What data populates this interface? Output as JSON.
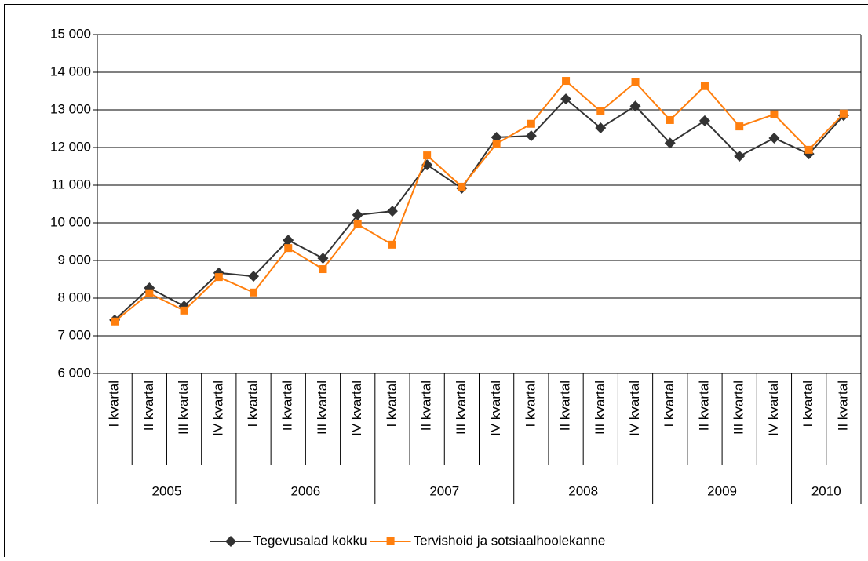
{
  "chart_data": {
    "type": "line",
    "categories": [
      "I kvartal",
      "II kvartal",
      "III kvartal",
      "IV kvartal",
      "I kvartal",
      "II kvartal",
      "III kvartal",
      "IV kvartal",
      "I kvartal",
      "II kvartal",
      "III kvartal",
      "IV kvartal",
      "I kvartal",
      "II kvartal",
      "III kvartal",
      "IV kvartal",
      "I kvartal",
      "II kvartal",
      "III kvartal",
      "IV kvartal",
      "I kvartal",
      "II kvartal"
    ],
    "years": [
      "2005",
      null,
      null,
      null,
      "2006",
      null,
      null,
      null,
      "2007",
      null,
      null,
      null,
      "2008",
      null,
      null,
      null,
      "2009",
      null,
      null,
      null,
      "2010",
      null
    ],
    "series": [
      {
        "name": "Tegevusalad kokku",
        "color": "#333333",
        "marker": "diamond",
        "values": [
          7420,
          8270,
          7790,
          8670,
          8580,
          9540,
          9060,
          10210,
          10310,
          11540,
          10920,
          12270,
          12310,
          13290,
          12520,
          13100,
          12120,
          12710,
          11770,
          12250,
          11830,
          12850
        ]
      },
      {
        "name": "Tervishoid ja sotsiaalhoolekanne",
        "color": "#ff7f0e",
        "marker": "square",
        "values": [
          7380,
          8130,
          7670,
          8560,
          8150,
          9330,
          8770,
          9960,
          9420,
          11790,
          10960,
          12100,
          12630,
          13770,
          12960,
          13730,
          12730,
          13630,
          12560,
          12880,
          11940,
          12900
        ]
      }
    ],
    "ylim": [
      6000,
      15000
    ],
    "yticks": [
      {
        "value": 6000,
        "label": "6 000"
      },
      {
        "value": 7000,
        "label": "7 000"
      },
      {
        "value": 8000,
        "label": "8 000"
      },
      {
        "value": 9000,
        "label": "9 000"
      },
      {
        "value": 10000,
        "label": "10 000"
      },
      {
        "value": 11000,
        "label": "11 000"
      },
      {
        "value": 12000,
        "label": "12 000"
      },
      {
        "value": 13000,
        "label": "13 000"
      },
      {
        "value": 14000,
        "label": "14 000"
      },
      {
        "value": 15000,
        "label": "15 000"
      }
    ],
    "grid": true,
    "legend": "bottom"
  }
}
